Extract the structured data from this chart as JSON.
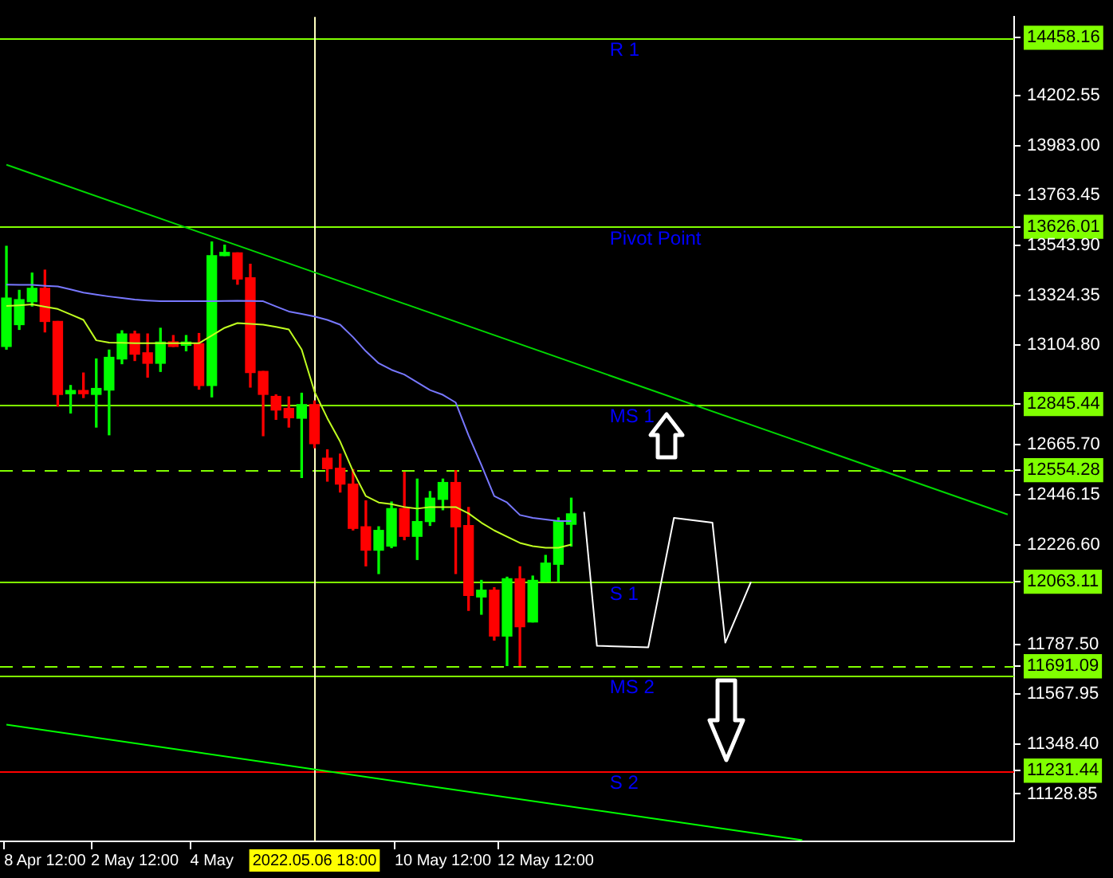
{
  "chart_data": {
    "type": "candlestick",
    "categories": [
      null,
      null,
      null,
      "8 Apr 12:00",
      null,
      null,
      null,
      null,
      null,
      null,
      "2 May 12:00",
      null,
      null,
      null,
      null,
      null,
      "4 May",
      null,
      null,
      null,
      null,
      null,
      null,
      null,
      "2022.05.06 18:00",
      null,
      null,
      null,
      null,
      null,
      null,
      null,
      null,
      null,
      "10 May 12:00",
      null,
      null,
      null,
      null,
      null,
      null,
      null,
      "12 May 12:00",
      null,
      null,
      null,
      null,
      null,
      null,
      null,
      null,
      null,
      null,
      null,
      null,
      null,
      null,
      null,
      null,
      null,
      null,
      null,
      null,
      null,
      null,
      null,
      null,
      null,
      null,
      null,
      null,
      null,
      null,
      null,
      null,
      null,
      null,
      null,
      null
    ],
    "ohlc": [
      [
        13099,
        13540,
        13087,
        13312
      ],
      [
        13195,
        13346,
        13174,
        13305
      ],
      [
        13296,
        13422,
        13277,
        13355
      ],
      [
        13355,
        13435,
        13163,
        13209
      ],
      [
        13209,
        13209,
        12836,
        12888
      ],
      [
        12891,
        12927,
        12806,
        12902
      ],
      [
        12902,
        12982,
        12874,
        12891
      ],
      [
        12888,
        13044,
        12744,
        12914
      ],
      [
        12907,
        13083,
        12710,
        13051
      ],
      [
        13044,
        13168,
        13023,
        13154
      ],
      [
        13154,
        13166,
        13037,
        13065
      ],
      [
        13071,
        13154,
        12964,
        13025
      ],
      [
        13025,
        13179,
        12989,
        13118
      ],
      [
        13119,
        13147,
        13099,
        13099
      ],
      [
        13104,
        13147,
        13080,
        13115
      ],
      [
        13111,
        13156,
        12911,
        12927
      ],
      [
        12927,
        13559,
        12877,
        13499
      ],
      [
        13499,
        13545,
        13499,
        13511
      ],
      [
        13511,
        13511,
        13373,
        13396
      ],
      [
        13401,
        13461,
        12920,
        12984
      ],
      [
        12989,
        12989,
        12706,
        12888
      ],
      [
        12879,
        12886,
        12778,
        12819
      ],
      [
        12826,
        12877,
        12744,
        12785
      ],
      [
        12783,
        12893,
        12522,
        12843
      ],
      [
        12843,
        12859,
        12653,
        12671
      ],
      [
        12607,
        12644,
        12506,
        12561
      ],
      [
        12563,
        12625,
        12458,
        12493
      ],
      [
        12493,
        12557,
        12291,
        12298
      ],
      [
        12305,
        12419,
        12133,
        12202
      ],
      [
        12202,
        12305,
        12099,
        12289
      ],
      [
        12220,
        12414,
        12213,
        12385
      ],
      [
        12385,
        12545,
        12248,
        12263
      ],
      [
        12263,
        12515,
        12161,
        12328
      ],
      [
        12328,
        12460,
        12311,
        12431
      ],
      [
        12426,
        12515,
        12380,
        12500
      ],
      [
        12500,
        12552,
        12099,
        12305
      ],
      [
        12310,
        12390,
        11937,
        12003
      ],
      [
        11996,
        12069,
        11920,
        12026
      ],
      [
        12026,
        12037,
        11806,
        11824
      ],
      [
        11824,
        12083,
        11694,
        12076
      ],
      [
        12076,
        12129,
        11694,
        11865
      ],
      [
        11886,
        12088,
        11886,
        12069
      ],
      [
        12064,
        12179,
        12064,
        12145
      ],
      [
        12140,
        12344,
        12064,
        12328
      ],
      [
        12316,
        12431,
        12220,
        12362
      ],
      null,
      null,
      null,
      null,
      null,
      null,
      null,
      null,
      null,
      null,
      null,
      null,
      null,
      null,
      null,
      null,
      null,
      null,
      null,
      null,
      null,
      null,
      null,
      null,
      null,
      null,
      null,
      null,
      null,
      null,
      null,
      null,
      null,
      null
    ],
    "colors": [
      "#00ff00",
      "#00ff00",
      "#00ff00",
      "#ff0000",
      "#ff0000",
      "#00ff00",
      "#ff0000",
      "#00ff00",
      "#00ff00",
      "#00ff00",
      "#ff0000",
      "#ff0000",
      "#00ff00",
      "#ff0000",
      "#00ff00",
      "#ff0000",
      "#00ff00",
      "#00ff00",
      "#ff0000",
      "#ff0000",
      "#ff0000",
      "#ff0000",
      "#ff0000",
      "#00ff00",
      "#ff0000",
      "#ff0000",
      "#ff0000",
      "#ff0000",
      "#ff0000",
      "#00ff00",
      "#00ff00",
      "#ff0000",
      "#00ff00",
      "#00ff00",
      "#00ff00",
      "#ff0000",
      "#ff0000",
      "#00ff00",
      "#ff0000",
      "#00ff00",
      "#ff0000",
      "#00ff00",
      "#00ff00",
      "#00ff00",
      "#00ff00",
      null,
      null,
      null,
      null,
      null,
      null,
      null,
      null,
      null,
      null,
      null,
      null,
      null,
      null,
      null,
      null,
      null,
      null,
      null,
      null,
      null,
      null,
      null,
      null,
      null,
      null,
      null,
      null,
      null,
      null,
      null,
      null,
      null,
      null
    ],
    "series": [
      {
        "type": "line",
        "color": "#c0ff20",
        "values": [
          13277,
          13280,
          13284,
          13274,
          13264,
          13240,
          13216,
          13126,
          13116,
          13115,
          13113,
          13113,
          13113,
          13113,
          13113,
          13113,
          13147,
          13181,
          13202,
          13198,
          13195,
          13185,
          13174,
          13085,
          12900,
          12783,
          12680,
          12550,
          12440,
          12412,
          12405,
          12392,
          12385,
          12392,
          12392,
          12392,
          12364,
          12323,
          12289,
          12261,
          12234,
          12220,
          12213,
          12213,
          12227,
          null,
          null,
          null,
          null,
          null,
          null,
          null,
          null,
          null,
          null,
          null,
          null,
          null,
          null,
          null,
          null,
          null,
          null,
          null,
          null,
          null,
          null,
          null,
          null,
          null,
          null,
          null,
          null,
          null,
          null,
          null,
          null,
          null,
          null
        ]
      },
      {
        "type": "line",
        "color": "#7878ff",
        "values": [
          13371,
          13370,
          13370,
          13366,
          13363,
          13350,
          13336,
          13327,
          13319,
          13312,
          13305,
          13301,
          13298,
          13298,
          13298,
          13298,
          13298,
          13299,
          13300,
          13299,
          13298,
          13275,
          13253,
          13242,
          13231,
          13216,
          13195,
          13140,
          13078,
          13025,
          12996,
          12975,
          12941,
          12907,
          12886,
          12852,
          12708,
          12577,
          12440,
          12412,
          12357,
          12344,
          12337,
          12330,
          12330,
          null,
          null,
          null,
          null,
          null,
          null,
          null,
          null,
          null,
          null,
          null,
          null,
          null,
          null,
          null,
          null,
          null,
          null,
          null,
          null,
          null,
          null,
          null,
          null,
          null,
          null,
          null,
          null,
          null,
          null,
          null,
          null,
          null,
          null
        ]
      },
      {
        "type": "line",
        "color": "#00d800",
        "values": [
          13899,
          null,
          null,
          null,
          null,
          null,
          null,
          null,
          null,
          null,
          null,
          null,
          null,
          null,
          null,
          null,
          null,
          null,
          null,
          null,
          null,
          null,
          null,
          null,
          null,
          null,
          null,
          null,
          null,
          null,
          null,
          null,
          null,
          null,
          null,
          null,
          null,
          null,
          null,
          null,
          null,
          null,
          null,
          null,
          null,
          null,
          null,
          null,
          null,
          null,
          null,
          null,
          null,
          null,
          null,
          null,
          null,
          null,
          null,
          null,
          null,
          null,
          null,
          null,
          null,
          null,
          null,
          null,
          null,
          null,
          null,
          null,
          null,
          null,
          null,
          null,
          null,
          null,
          12359
        ]
      },
      {
        "type": "line",
        "color": "#ffffff",
        "values": [
          null,
          null,
          null,
          null,
          null,
          null,
          null,
          null,
          null,
          null,
          null,
          null,
          null,
          null,
          null,
          null,
          null,
          null,
          null,
          null,
          null,
          null,
          null,
          null,
          null,
          null,
          null,
          null,
          null,
          null,
          null,
          null,
          null,
          null,
          null,
          null,
          null,
          null,
          null,
          null,
          null,
          null,
          null,
          null,
          null,
          12371,
          11781,
          null,
          null,
          null,
          11774,
          null,
          12344,
          null,
          null,
          12323,
          11795,
          null,
          12062,
          null,
          null,
          null,
          null,
          null,
          null,
          null,
          null,
          null,
          null,
          null,
          null,
          null,
          null,
          null,
          null,
          null,
          null,
          null,
          null
        ]
      },
      {
        "type": "line",
        "color": "#00ff00",
        "values": [
          11434,
          null,
          null,
          null,
          null,
          null,
          null,
          null,
          null,
          null,
          null,
          null,
          null,
          null,
          null,
          null,
          null,
          null,
          null,
          null,
          null,
          null,
          null,
          null,
          null,
          null,
          null,
          null,
          null,
          null,
          null,
          null,
          null,
          null,
          null,
          null,
          null,
          null,
          null,
          null,
          null,
          null,
          null,
          null,
          null,
          null,
          null,
          null,
          null,
          null,
          null,
          null,
          null,
          null,
          null,
          null,
          null,
          null,
          null,
          null,
          null,
          null,
          10925,
          null,
          null,
          null,
          null,
          null,
          null,
          null,
          null,
          null,
          null,
          null,
          null,
          null,
          null,
          null,
          null
        ]
      }
    ],
    "ylim": [
      10920,
      14550
    ],
    "yticks": [
      {
        "value": 14458.16,
        "label": "14458.16"
      },
      14202.55,
      {
        "value": 13983,
        "label": "13983.00"
      },
      13763.45,
      {
        "value": 13626.01,
        "label": "13626.01"
      },
      {
        "value": 13543.9,
        "label": "13543.90"
      },
      13324.35,
      {
        "value": 13104.8,
        "label": "13104.80"
      },
      {
        "value": 12845.44,
        "label": "12845.44"
      },
      {
        "value": 12665.7,
        "label": "12665.70"
      },
      {
        "value": 12554.28,
        "label": "12554.28"
      },
      12446.15,
      {
        "value": 12226.6,
        "label": "12226.60"
      },
      {
        "value": 12063.11,
        "label": "12063.11"
      },
      {
        "value": 11787.5,
        "label": "11787.50"
      },
      {
        "value": 11691.09,
        "label": "11691.09"
      },
      11567.95,
      {
        "value": 11348.4,
        "label": "11348.40"
      },
      {
        "value": 11231.44,
        "label": "11231.44"
      },
      11128.85
    ],
    "ref_lines": [
      {
        "axis": "y",
        "value": 14458.16,
        "label": "R 1",
        "color": "#80ff00"
      },
      {
        "axis": "y",
        "value": 13626.01,
        "label": "Pivot Point",
        "color": "#80ff00"
      },
      {
        "axis": "y",
        "value": 12845.44,
        "label": "MS 1",
        "color": "#80ff00"
      },
      {
        "axis": "y",
        "value": 12554.28,
        "label": null,
        "color": "#80ff00",
        "line_style": "dashed"
      },
      {
        "axis": "y",
        "value": 12063.11,
        "label": "S 1",
        "color": "#80ff00"
      },
      {
        "axis": "y",
        "value": 11652.98,
        "label": "MS 2",
        "color": "#80ff00"
      },
      {
        "axis": "y",
        "value": 11691.09,
        "label": null,
        "color": "#80ff00",
        "line_style": "dashed"
      },
      {
        "axis": "y",
        "value": 11231.44,
        "label": "S 2",
        "color": "#ff0000"
      },
      {
        "axis": "x",
        "value": "2022.05.06 18:00",
        "label": null,
        "color": "#ffffc0"
      }
    ]
  }
}
